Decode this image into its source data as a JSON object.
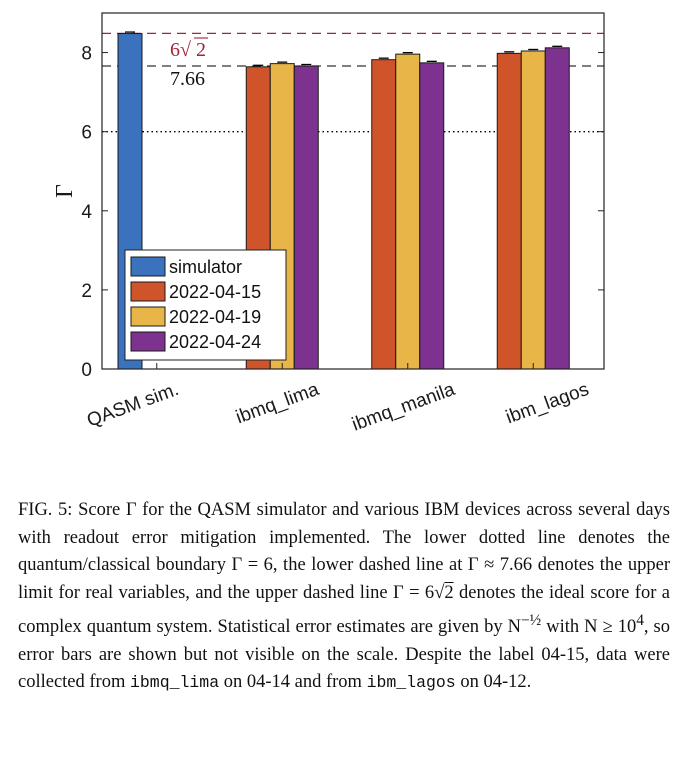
{
  "chart_data": {
    "type": "bar",
    "ylabel": "Γ",
    "ylim": [
      0,
      9
    ],
    "yticks": [
      0,
      2,
      4,
      6,
      8
    ],
    "categories": [
      "QASM sim.",
      "ibmq_lima",
      "ibmq_manila",
      "ibm_lagos"
    ],
    "series": [
      {
        "name": "simulator",
        "color": "#3A72BE",
        "values": [
          8.48,
          0,
          0,
          0
        ]
      },
      {
        "name": "2022-04-15",
        "color": "#D0542A",
        "values": [
          0,
          7.64,
          7.82,
          7.98
        ]
      },
      {
        "name": "2022-04-19",
        "color": "#E8B548",
        "values": [
          0,
          7.72,
          7.96,
          8.04
        ]
      },
      {
        "name": "2022-04-24",
        "color": "#7D3290",
        "values": [
          0,
          7.66,
          7.74,
          8.12
        ]
      }
    ],
    "reference_lines": [
      {
        "value": 8.485,
        "style": "dashed",
        "color": "#A0243A",
        "label_prefix": "6",
        "label_radicand": "2"
      },
      {
        "value": 7.66,
        "style": "dashed",
        "color": "#333333",
        "label": "7.66"
      },
      {
        "value": 6,
        "style": "dotted",
        "color": "#000000"
      }
    ],
    "legend_position": "lower-left",
    "grid": false
  },
  "caption": {
    "p1": "FIG. 5: Score Γ for the QASM simulator and various IBM devices across several days with readout error mitigation implemented. The lower dotted line denotes the quantum/classical boundary Γ = 6, the lower dashed line at Γ ≈ 7.66 denotes the upper limit for real variables, and the upper dashed line Γ = 6",
    "sqrt_arg": "2",
    "p2": " denotes the ideal score for a complex quantum system. Statistical error estimates are given by N",
    "exponent": "−½",
    "p3": " with N ≥ 10",
    "p3_sup": "4",
    "p4": ", so error bars are shown but not visible on the scale. Despite the label 04-15, data were collected from ",
    "device1": "ibmq_lima",
    "p5": " on 04-14 and from ",
    "device2": "ibm_lagos",
    "p6": " on 04-12."
  }
}
